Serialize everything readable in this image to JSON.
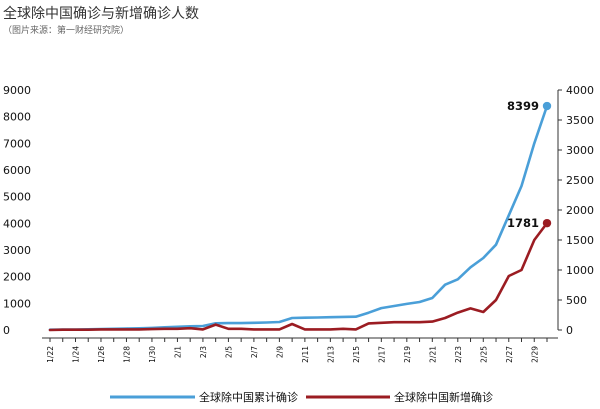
{
  "chart_data": {
    "type": "line",
    "title": "全球除中国确诊与新增确诊人数",
    "subtitle": "（图片来源：第一财经研究院）",
    "x": [
      "1/22",
      "1/23",
      "1/24",
      "1/25",
      "1/26",
      "1/27",
      "1/28",
      "1/29",
      "1/30",
      "1/31",
      "2/1",
      "2/2",
      "2/3",
      "2/4",
      "2/5",
      "2/6",
      "2/7",
      "2/8",
      "2/9",
      "2/10",
      "2/11",
      "2/12",
      "2/13",
      "2/14",
      "2/15",
      "2/16",
      "2/17",
      "2/18",
      "2/19",
      "2/20",
      "2/21",
      "2/22",
      "2/23",
      "2/24",
      "2/25",
      "2/26",
      "2/27",
      "2/28",
      "2/29",
      "3/1"
    ],
    "xtick_labels": [
      "1/22",
      "1/24",
      "1/26",
      "1/28",
      "1/30",
      "2/1",
      "2/3",
      "2/5",
      "2/7",
      "2/9",
      "2/11",
      "2/13",
      "2/15",
      "2/17",
      "2/19",
      "2/21",
      "2/23",
      "2/25",
      "2/27",
      "2/29"
    ],
    "left_axis": {
      "ylim": [
        0,
        9000
      ],
      "ticks": [
        "0",
        "1000",
        "2000",
        "3000",
        "4000",
        "5000",
        "6000",
        "7000",
        "8000",
        "9000"
      ]
    },
    "right_axis": {
      "ylim": [
        0,
        4000
      ],
      "ticks": [
        "0",
        "500",
        "1000",
        "1500",
        "2000",
        "2500",
        "3000",
        "3500",
        "4000"
      ]
    },
    "series": [
      {
        "name": "全球除中国累计确诊",
        "axis": "left",
        "color": "#4a9fd8",
        "values": [
          10,
          15,
          20,
          25,
          35,
          45,
          55,
          65,
          80,
          100,
          120,
          140,
          150,
          250,
          260,
          260,
          270,
          280,
          300,
          450,
          460,
          470,
          480,
          490,
          500,
          650,
          820,
          900,
          980,
          1050,
          1200,
          1700,
          1900,
          2350,
          2700,
          3200,
          4300,
          5400,
          7000,
          8399
        ],
        "end_label": "8399"
      },
      {
        "name": "全球除中国新增确诊",
        "axis": "right",
        "color": "#9b1c22",
        "values": [
          0,
          5,
          5,
          5,
          10,
          10,
          10,
          10,
          15,
          20,
          20,
          30,
          10,
          90,
          20,
          20,
          10,
          10,
          10,
          100,
          10,
          10,
          10,
          20,
          10,
          110,
          120,
          130,
          130,
          130,
          140,
          200,
          290,
          360,
          300,
          500,
          900,
          1000,
          1500,
          1781
        ],
        "end_label": "1781"
      }
    ],
    "legend_position": "bottom",
    "grid": false
  }
}
